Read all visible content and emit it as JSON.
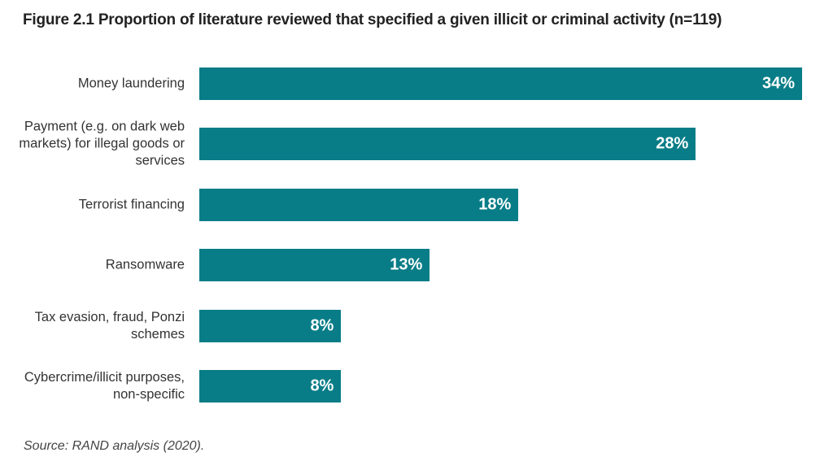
{
  "chart_data": {
    "type": "bar",
    "orientation": "horizontal",
    "title": "Figure 2.1 Proportion of literature reviewed that specified a given illicit or criminal activity (n=119)",
    "categories": [
      "Money laundering",
      "Payment (e.g. on dark web markets) for illegal goods or services",
      "Terrorist financing",
      "Ransomware",
      "Tax evasion, fraud, Ponzi schemes",
      "Cybercrime/illicit purposes, non-specific"
    ],
    "values": [
      34,
      28,
      18,
      13,
      8,
      8
    ],
    "value_labels": [
      "34%",
      "28%",
      "18%",
      "13%",
      "8%",
      "8%"
    ],
    "xlabel": "",
    "ylabel": "",
    "xlim": [
      0,
      34
    ],
    "grid": false,
    "bar_color": "#087d87",
    "source": "Source: RAND analysis (2020)."
  }
}
